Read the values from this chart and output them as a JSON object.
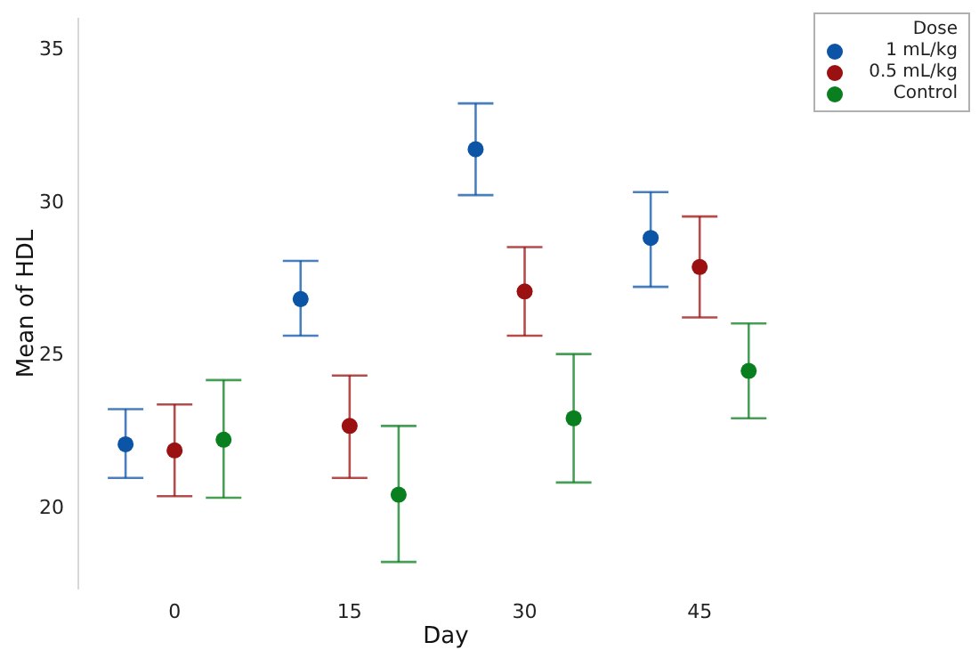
{
  "chart_data": {
    "type": "scatter",
    "xlabel": "Day",
    "ylabel": "Mean of HDL",
    "legend_title": "Dose",
    "categories": [
      "0",
      "15",
      "30",
      "45"
    ],
    "ylim": [
      17.3,
      36
    ],
    "yticks": [
      20,
      25,
      30,
      35
    ],
    "grid": false,
    "legend": "top right",
    "marker": "circle",
    "series": [
      {
        "name": "1 mL/kg",
        "color": "#0b54a6",
        "values": [
          22.05,
          26.8,
          31.7,
          28.8
        ],
        "errors": [
          [
            20.95,
            23.2
          ],
          [
            25.6,
            28.05
          ],
          [
            30.2,
            33.2
          ],
          [
            27.2,
            30.3
          ]
        ]
      },
      {
        "name": "0.5 mL/kg",
        "color": "#9b1010",
        "values": [
          21.85,
          22.65,
          27.05,
          27.85
        ],
        "errors": [
          [
            20.35,
            23.35
          ],
          [
            20.95,
            24.3
          ],
          [
            25.6,
            28.5
          ],
          [
            26.2,
            29.5
          ]
        ]
      },
      {
        "name": "Control",
        "color": "#0a7f1f",
        "values": [
          22.2,
          20.4,
          22.9,
          24.45
        ],
        "errors": [
          [
            20.3,
            24.15
          ],
          [
            18.2,
            22.65
          ],
          [
            20.8,
            25.0
          ],
          [
            22.9,
            26.0
          ]
        ]
      }
    ]
  }
}
